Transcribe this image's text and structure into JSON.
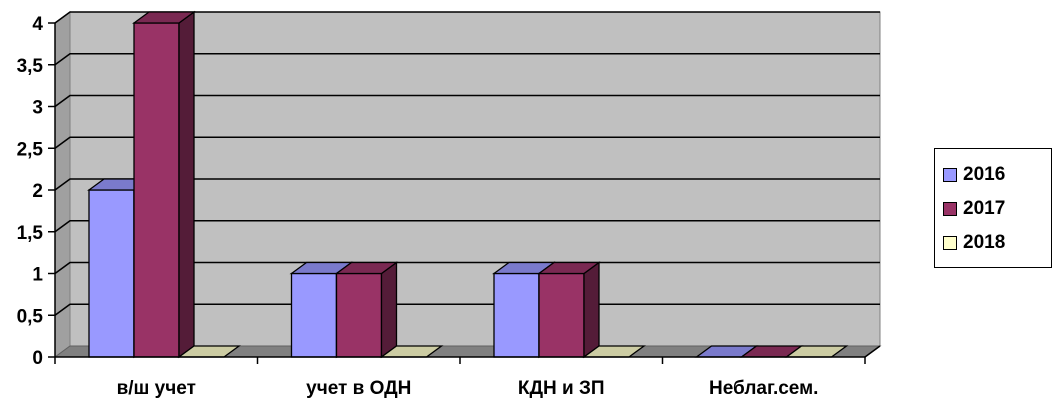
{
  "chart_data": {
    "type": "bar",
    "categories": [
      "в/ш учет",
      "учет в ОДН",
      "КДН и ЗП",
      "Неблаг.сем."
    ],
    "series": [
      {
        "name": "2016",
        "values": [
          2,
          1,
          1,
          0
        ],
        "color": "#9999FF"
      },
      {
        "name": "2017",
        "values": [
          4,
          1,
          1,
          0
        ],
        "color": "#993366"
      },
      {
        "name": "2018",
        "values": [
          0,
          0,
          0,
          0
        ],
        "color": "#FFFFCC"
      }
    ],
    "y_ticks": [
      "0",
      "0,5",
      "1",
      "1,5",
      "2",
      "2,5",
      "3",
      "3,5",
      "4"
    ],
    "ylim": [
      0,
      4
    ],
    "three_d": true,
    "grid": true,
    "plot_background": "#C0C0C0",
    "legend_position": "right"
  }
}
